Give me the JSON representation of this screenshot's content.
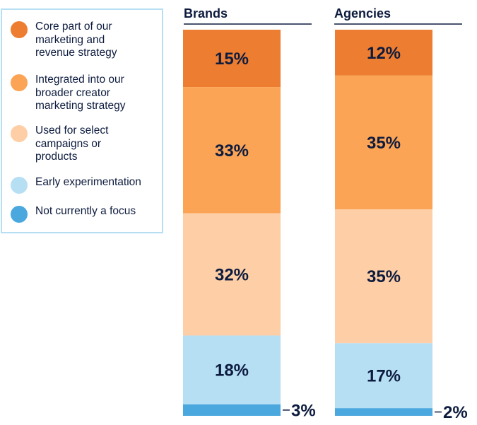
{
  "chart_data": {
    "type": "bar",
    "stacked": true,
    "normalized": true,
    "categories": [
      "Brands",
      "Agencies"
    ],
    "series": [
      {
        "name": "Core part of our marketing and revenue strategy",
        "values": [
          15,
          12
        ],
        "color": "#ed7d31"
      },
      {
        "name": "Integrated into our broader creator marketing strategy",
        "values": [
          33,
          35
        ],
        "color": "#fca455"
      },
      {
        "name": "Used for select campaigns or products",
        "values": [
          32,
          35
        ],
        "color": "#fecfa6"
      },
      {
        "name": "Early experimentation",
        "values": [
          18,
          17
        ],
        "color": "#b7dff4"
      },
      {
        "name": "Not currently a focus",
        "values": [
          3,
          2
        ],
        "color": "#4aa8de"
      }
    ],
    "value_labels": [
      [
        "15%",
        "12%"
      ],
      [
        "33%",
        "35%"
      ],
      [
        "32%",
        "35%"
      ],
      [
        "18%",
        "17%"
      ],
      [
        "3%",
        "2%"
      ]
    ],
    "legend": {
      "position": "left",
      "items": [
        {
          "lines": [
            "Core part of our",
            "marketing and",
            "revenue strategy"
          ],
          "color": "#ed7d31"
        },
        {
          "lines": [
            "Integrated into our",
            "broader creator",
            "marketing strategy"
          ],
          "color": "#fca455"
        },
        {
          "lines": [
            "Used for select",
            "campaigns or",
            "products"
          ],
          "color": "#fecfa6"
        },
        {
          "lines": [
            "Early experimentation"
          ],
          "color": "#b7dff4"
        },
        {
          "lines": [
            "Not currently a focus"
          ],
          "color": "#4aa8de"
        }
      ]
    },
    "title": "",
    "xlabel": "",
    "ylabel": "",
    "grid": false
  }
}
